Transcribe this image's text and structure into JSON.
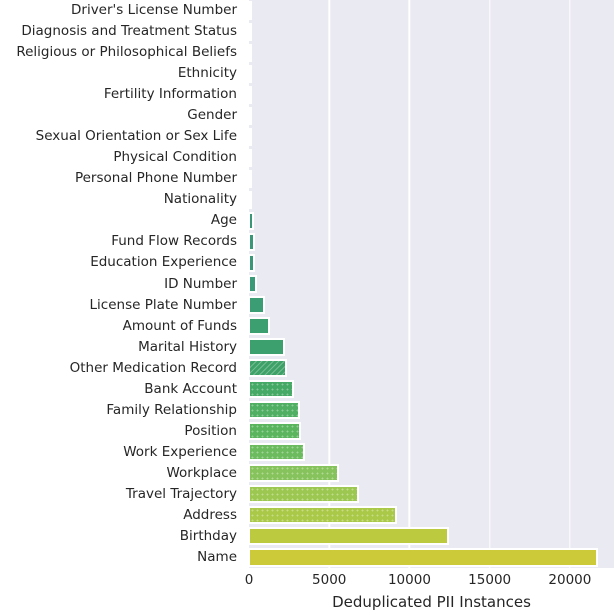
{
  "chart_data": {
    "type": "bar",
    "orientation": "horizontal",
    "title": "",
    "xlabel": "Deduplicated PII Instances",
    "ylabel": "",
    "xlim": [
      0,
      22750
    ],
    "x_ticks": [
      0,
      5000,
      10000,
      15000,
      20000
    ],
    "x_tick_labels": [
      "0",
      "5000",
      "10000",
      "15000",
      "20000"
    ],
    "grid": true,
    "legend": "none",
    "plot_background": "#eaeaf2",
    "gridline_color": "#ffffff",
    "text_color": "#262626",
    "bar_edge_color": "#ffffff",
    "categories": [
      "Driver's License Number",
      "Diagnosis and Treatment Status",
      "Religious or Philosophical Beliefs",
      "Ethnicity",
      "Fertility Information",
      "Gender",
      "Sexual Orientation or Sex Life",
      "Physical Condition",
      "Personal Phone Number",
      "Nationality",
      "Age",
      "Fund Flow Records",
      "Education Experience",
      "ID Number",
      "License Plate Number",
      "Amount of Funds",
      "Marital History",
      "Other Medication Record",
      "Bank Account",
      "Family Relationship",
      "Position",
      "Work Experience",
      "Workplace",
      "Travel Trajectory",
      "Address",
      "Birthday",
      "Name"
    ],
    "values": [
      10,
      15,
      20,
      25,
      30,
      40,
      50,
      60,
      70,
      90,
      170,
      230,
      280,
      360,
      900,
      1200,
      2100,
      2270,
      2650,
      3050,
      3100,
      3350,
      5500,
      6750,
      9100,
      12350,
      21600
    ],
    "bar_colors": [
      "#369376",
      "#369476",
      "#379477",
      "#379577",
      "#389577",
      "#389577",
      "#389678",
      "#389678",
      "#399678",
      "#399679",
      "#399778",
      "#3a9778",
      "#3a9878",
      "#3a9a77",
      "#3a9d74",
      "#3b9f70",
      "#3ba06d",
      "#3ea268",
      "#46a966",
      "#50af62",
      "#5ab55e",
      "#6cbb5f",
      "#87c35c",
      "#9cc852",
      "#aac948",
      "#bcca3f",
      "#cdca39"
    ],
    "bar_patterns": [
      "none",
      "none",
      "none",
      "none",
      "none",
      "none",
      "none",
      "none",
      "none",
      "none",
      "none",
      "none",
      "none",
      "none",
      "none",
      "none",
      "none",
      "diag",
      "dots",
      "dots",
      "dots",
      "dots",
      "dots",
      "dots",
      "dots",
      "none",
      "none"
    ]
  }
}
